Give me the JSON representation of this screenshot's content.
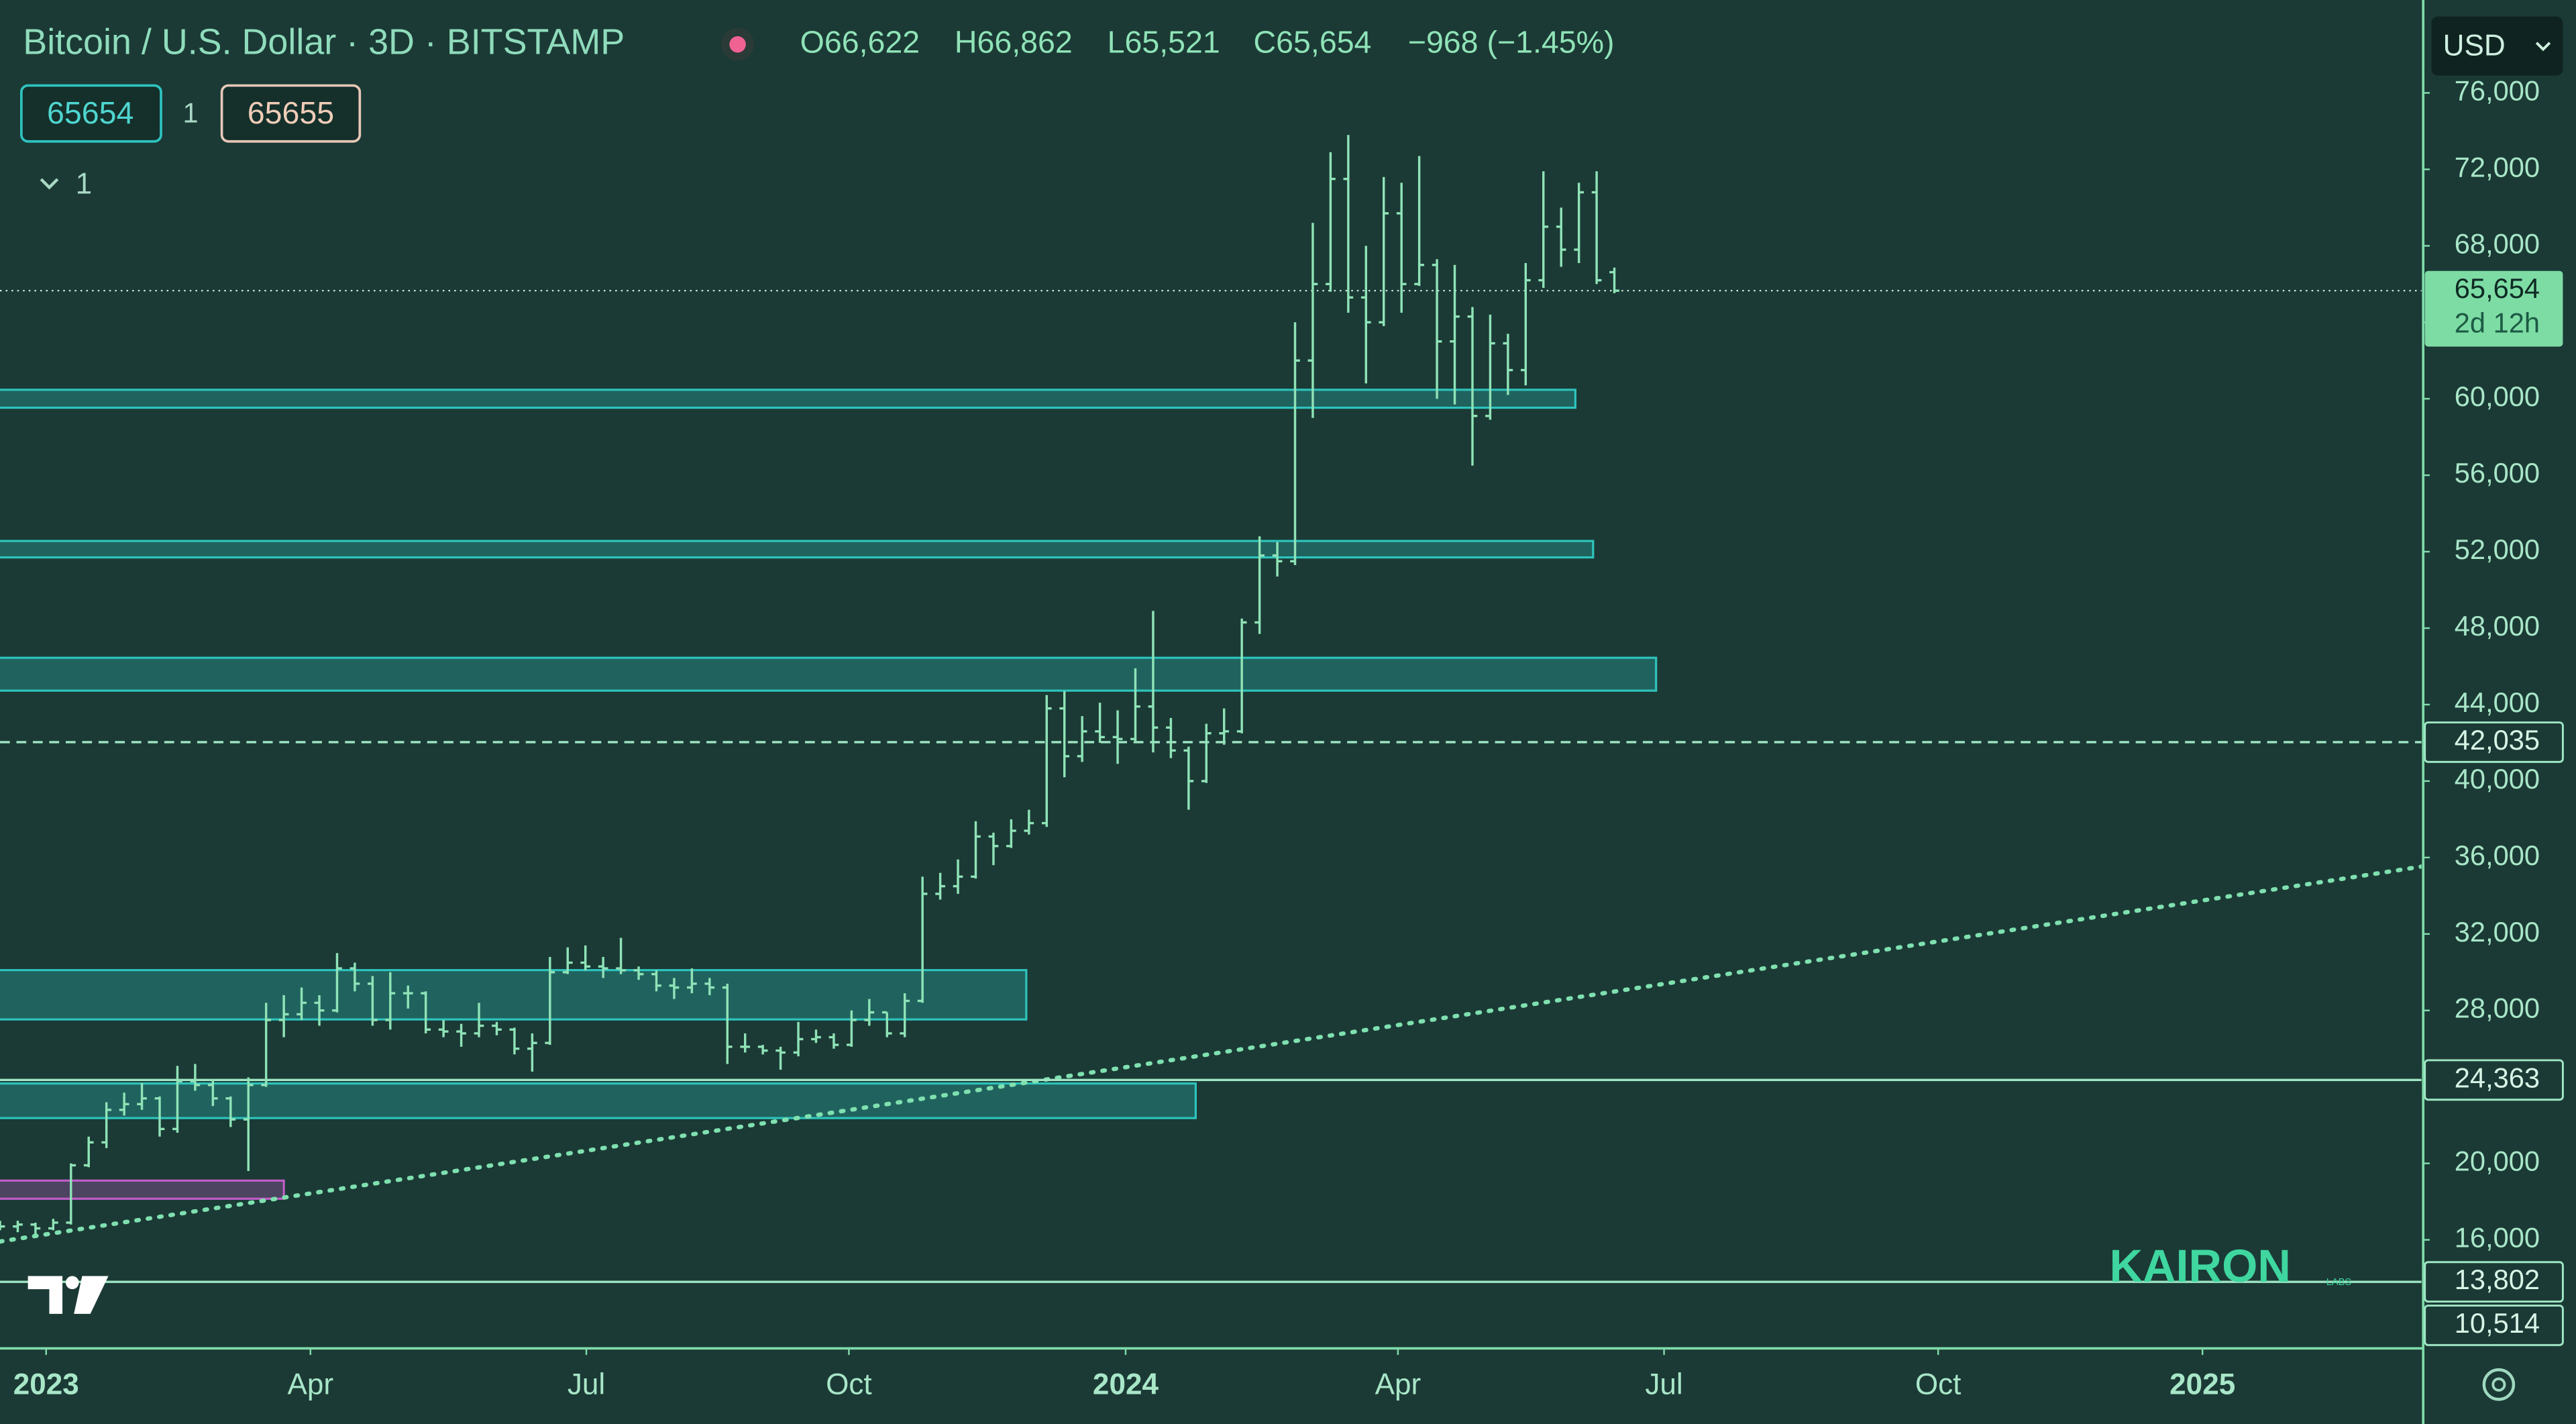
{
  "ui": {
    "inputs": [
      "65654",
      "1",
      "65655"
    ],
    "indicator_count": "1",
    "currency": "USD",
    "watermark": "KAIRON",
    "watermark_sub": "LABS"
  },
  "chart_data": {
    "type": "ohlc",
    "title": "Bitcoin / U.S. Dollar · 3D · BITSTAMP",
    "ohlc_text": [
      "O66,622",
      "H66,862",
      "L65,521",
      "C65,654"
    ],
    "change_text": "−968 (−1.45%)",
    "color": "#8fe3b7",
    "x": [
      0,
      2,
      4,
      6,
      8,
      10,
      12,
      14,
      16,
      18,
      20,
      22,
      24,
      26,
      28,
      30,
      32,
      34,
      36,
      38,
      40,
      42,
      44,
      46,
      48,
      50,
      52,
      54,
      56,
      58,
      60,
      62,
      64,
      66,
      68,
      70,
      72,
      74,
      76,
      78,
      80,
      82,
      84,
      86,
      88,
      90,
      92,
      94,
      96,
      98,
      100,
      102,
      104,
      106,
      108,
      110,
      112,
      114,
      116,
      118,
      120,
      122,
      124,
      126,
      128,
      130,
      132,
      134,
      136,
      138,
      140,
      142,
      144,
      146,
      148,
      150,
      152,
      154,
      156,
      158,
      160,
      162,
      164,
      166,
      168,
      170,
      172,
      174,
      176,
      178,
      180,
      182
    ],
    "open": [
      16800,
      16700,
      16800,
      16600,
      16900,
      19900,
      21100,
      22800,
      23100,
      23400,
      21800,
      24300,
      24100,
      23400,
      22300,
      24100,
      27500,
      27800,
      28400,
      28000,
      30200,
      29400,
      27500,
      28900,
      28900,
      27000,
      26900,
      26800,
      27200,
      27000,
      26000,
      26300,
      30000,
      30500,
      30300,
      30200,
      30100,
      29900,
      29300,
      29200,
      29400,
      29200,
      26100,
      26100,
      25900,
      25800,
      26500,
      26600,
      26200,
      27500,
      27900,
      26800,
      28500,
      34100,
      34500,
      35000,
      37100,
      36600,
      37400,
      37800,
      43800,
      41300,
      42600,
      42300,
      42200,
      43900,
      42800,
      41600,
      40000,
      42500,
      42600,
      48300,
      51800,
      51500,
      62000,
      66000,
      71500,
      65300,
      64000,
      69700,
      66000,
      67000,
      63000,
      64300,
      59100,
      62900,
      61500,
      66200,
      69000,
      67800,
      70800,
      66622
    ],
    "high": [
      17000,
      17000,
      16900,
      17100,
      20000,
      21400,
      23200,
      23700,
      24200,
      23500,
      25100,
      25200,
      24400,
      23500,
      24500,
      28400,
      28800,
      29200,
      28800,
      31000,
      30500,
      29800,
      30000,
      29300,
      29000,
      27500,
      27300,
      28400,
      27400,
      27100,
      26800,
      30800,
      31300,
      31400,
      30800,
      31800,
      30300,
      30100,
      29700,
      30200,
      29700,
      29400,
      26800,
      26200,
      26100,
      27400,
      27000,
      26800,
      28000,
      28600,
      27900,
      28900,
      35000,
      35200,
      35900,
      37900,
      37300,
      38000,
      38500,
      44500,
      44700,
      43400,
      44100,
      43700,
      45900,
      48900,
      43300,
      41800,
      43000,
      43800,
      48500,
      52800,
      52500,
      64000,
      69200,
      72900,
      73800,
      68000,
      71600,
      71300,
      72700,
      67300,
      67000,
      64800,
      64400,
      63400,
      67100,
      71900,
      70000,
      71300,
      71900,
      66862
    ],
    "low": [
      16500,
      16400,
      16300,
      16500,
      16800,
      19800,
      20800,
      22500,
      22800,
      21400,
      21600,
      23800,
      23000,
      21900,
      19600,
      24000,
      26600,
      27500,
      27200,
      27900,
      29000,
      27200,
      27000,
      28100,
      26800,
      26600,
      26100,
      26600,
      26700,
      25700,
      24800,
      26200,
      29900,
      30100,
      29700,
      29900,
      29600,
      29000,
      28600,
      28900,
      28800,
      25200,
      25800,
      25700,
      24900,
      25600,
      26300,
      26000,
      26100,
      27200,
      26600,
      26600,
      28400,
      33800,
      34100,
      34900,
      35600,
      36500,
      37200,
      37600,
      40200,
      41000,
      42000,
      40900,
      42100,
      41500,
      41200,
      38500,
      39900,
      41900,
      42500,
      47700,
      50700,
      51300,
      59000,
      65600,
      64500,
      60800,
      63800,
      64500,
      65900,
      60000,
      59700,
      56500,
      58900,
      60200,
      60700,
      65800,
      66900,
      67100,
      66000,
      65521
    ],
    "close": [
      16700,
      16800,
      16600,
      16900,
      19900,
      21100,
      22800,
      23100,
      23400,
      21800,
      24300,
      24100,
      23400,
      22300,
      24100,
      27500,
      27800,
      28400,
      28000,
      30200,
      29400,
      27500,
      28900,
      28900,
      27000,
      26900,
      26800,
      27200,
      27000,
      26000,
      26300,
      30000,
      30500,
      30300,
      30200,
      30100,
      29900,
      29300,
      29200,
      29400,
      29200,
      26100,
      26100,
      25900,
      25800,
      26500,
      26600,
      26200,
      27500,
      27900,
      26800,
      28500,
      34100,
      34500,
      35000,
      37100,
      36600,
      37400,
      37800,
      43800,
      41300,
      42600,
      42300,
      42200,
      43900,
      42800,
      41600,
      40000,
      42500,
      42600,
      48300,
      51800,
      51500,
      62000,
      66000,
      71500,
      65300,
      64000,
      69700,
      66000,
      67000,
      63000,
      64300,
      59100,
      62900,
      61500,
      66200,
      69000,
      67800,
      70800,
      66200,
      65654
    ],
    "xlim": [
      0,
      273
    ],
    "xticks": [
      {
        "value": 5.2,
        "label": "2023"
      },
      {
        "value": 35,
        "label": "Apr"
      },
      {
        "value": 66.1,
        "label": "Jul"
      },
      {
        "value": 95.7,
        "label": "Oct"
      },
      {
        "value": 126.9,
        "label": "2024"
      },
      {
        "value": 157.6,
        "label": "Apr"
      },
      {
        "value": 187.6,
        "label": "Jul"
      },
      {
        "value": 218.5,
        "label": "Oct"
      },
      {
        "value": 248.3,
        "label": "2025"
      }
    ],
    "ylim": [
      10323,
      80860
    ],
    "yticks": [
      {
        "value": 16000,
        "label": "16,000"
      },
      {
        "value": 20000,
        "label": "20,000"
      },
      {
        "value": 24000,
        "label": "24,000"
      },
      {
        "value": 28000,
        "label": "28,000"
      },
      {
        "value": 32000,
        "label": "32,000"
      },
      {
        "value": 36000,
        "label": "36,000"
      },
      {
        "value": 40000,
        "label": "40,000"
      },
      {
        "value": 44000,
        "label": "44,000"
      },
      {
        "value": 48000,
        "label": "48,000"
      },
      {
        "value": 52000,
        "label": "52,000"
      },
      {
        "value": 56000,
        "label": "56,000"
      },
      {
        "value": 60000,
        "label": "60,000"
      },
      {
        "value": 64000,
        "label": "64,000"
      },
      {
        "value": 68000,
        "label": "68,000"
      },
      {
        "value": 72000,
        "label": "72,000"
      },
      {
        "value": 76000,
        "label": "76,000"
      }
    ],
    "zones": [
      {
        "top": 60470,
        "bottom": 59530,
        "end": 177.6,
        "color": "#2ec4bd"
      },
      {
        "top": 52560,
        "bottom": 51700,
        "end": 179.6,
        "color": "#2ec4bd"
      },
      {
        "top": 46450,
        "bottom": 44730,
        "end": 186.7,
        "color": "#2ec4bd"
      },
      {
        "top": 30110,
        "bottom": 27530,
        "end": 115.7,
        "color": "#2ec4bd"
      },
      {
        "top": 24180,
        "bottom": 22370,
        "end": 134.8,
        "color": "#2ec4bd"
      },
      {
        "top": 19100,
        "bottom": 18150,
        "end": 32,
        "color": "#c05ec8"
      }
    ],
    "trendline": {
      "x": [
        0,
        273
      ],
      "y": [
        15913,
        35528
      ],
      "color": "#7fe0b0"
    },
    "levels": [
      {
        "value": 65654,
        "label": "65,654",
        "style": "dotted",
        "highlight": true
      },
      {
        "value": 42035,
        "label": "42,035",
        "style": "dashed"
      },
      {
        "value": 24363,
        "label": "24,363",
        "style": "solid"
      },
      {
        "value": 13802,
        "label": "13,802",
        "style": "solid"
      },
      {
        "value": 10514,
        "label": "10,514",
        "style": "none"
      }
    ],
    "countdown": "2d 12h"
  }
}
